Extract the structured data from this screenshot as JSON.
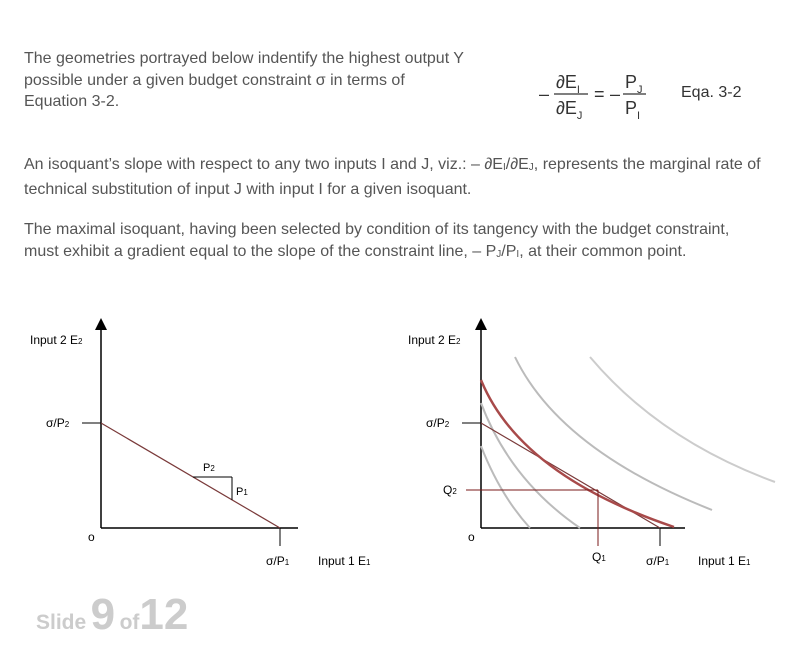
{
  "intro": {
    "text": "The geometries portrayed below indentify the highest output Y possible under a given budget constraint σ in terms of Equation 3-2."
  },
  "equation": {
    "lhs_sign": "–",
    "lhs_num": "∂E",
    "lhs_num_sub": "I",
    "lhs_den": "∂E",
    "lhs_den_sub": "J",
    "equals": "=",
    "rhs_sign": "–",
    "rhs_num": "P",
    "rhs_num_sub": "J",
    "rhs_den": "P",
    "rhs_den_sub": "I",
    "label": "Eqa. 3-2"
  },
  "para2": {
    "a": "An isoquant’s slope with respect to any two inputs I and J, viz.: – ∂E",
    "a_sub1": "I",
    "a_mid": "/∂E",
    "a_sub2": "J",
    "b": ", represents the marginal rate of technical substitution of input J with input I for a given isoquant."
  },
  "para3": {
    "a": "The maximal isoquant, having been selected by condition of its tangency with the budget constraint, must exhibit a gradient equal to the slope of the constraint line, – P",
    "a_sub1": "J",
    "a_mid": "/P",
    "a_sub2": "I",
    "b": ", at their common point."
  },
  "graph_left": {
    "y_axis_label": "Input 2 E",
    "y_axis_sub": "2",
    "x_axis_label": "Input 1 E",
    "x_axis_sub": "1",
    "origin": "o",
    "y_intercept": "σ/P",
    "y_intercept_sub": "2",
    "x_intercept": "σ/P",
    "x_intercept_sub": "1",
    "rise_label": "P",
    "rise_sub": "2",
    "run_label": "P",
    "run_sub": "1"
  },
  "graph_right": {
    "y_axis_label": "Input 2 E",
    "y_axis_sub": "2",
    "x_axis_label": "Input 1 E",
    "x_axis_sub": "1",
    "origin": "o",
    "y_intercept": "σ/P",
    "y_intercept_sub": "2",
    "x_intercept": "σ/P",
    "x_intercept_sub": "1",
    "q2": "Q",
    "q2_sub": "2",
    "q1": "Q",
    "q1_sub": "1",
    "colors": {
      "optimal_isoquant": "#a84a4a",
      "other_isoquants": "#bbbbbb",
      "budget_line": "#7a3a3a",
      "tangency_guides": "#7a1a1a"
    }
  },
  "footer": {
    "slide_word": "Slide",
    "slide_number": "9",
    "of_word": "of",
    "total": "12"
  }
}
